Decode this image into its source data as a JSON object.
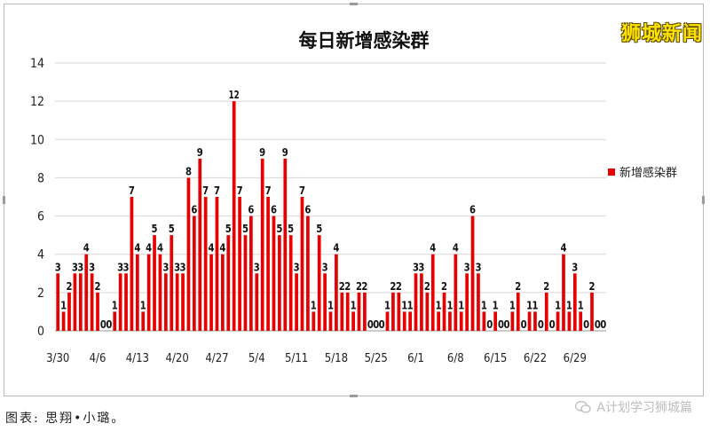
{
  "watermark": "狮城新闻",
  "caption": "图表: 思翔•小璐。",
  "wechat_account": "A计划学习狮城篇",
  "chart_data": {
    "type": "bar",
    "title": "每日新增感染群",
    "legend": [
      "新增感染群"
    ],
    "legend_position": "right",
    "ylim": [
      0,
      14
    ],
    "yticks": [
      0,
      2,
      4,
      6,
      8,
      10,
      12,
      14
    ],
    "grid": true,
    "colors": {
      "bar": "#e60000"
    },
    "xtick_labels": [
      "3/30",
      "4/6",
      "4/13",
      "4/20",
      "4/27",
      "5/4",
      "5/11",
      "5/18",
      "5/25",
      "6/1",
      "6/8",
      "6/15",
      "6/22",
      "6/29"
    ],
    "series": [
      {
        "name": "新增感染群",
        "values": [
          3,
          1,
          2,
          3,
          3,
          4,
          3,
          2,
          0,
          0,
          1,
          3,
          3,
          7,
          4,
          1,
          4,
          5,
          4,
          3,
          5,
          3,
          3,
          8,
          6,
          9,
          7,
          4,
          7,
          4,
          5,
          12,
          7,
          5,
          6,
          3,
          9,
          7,
          6,
          5,
          9,
          5,
          3,
          7,
          6,
          1,
          5,
          3,
          1,
          4,
          2,
          2,
          1,
          2,
          2,
          0,
          0,
          0,
          1,
          2,
          2,
          1,
          1,
          3,
          3,
          2,
          4,
          1,
          2,
          1,
          4,
          1,
          3,
          6,
          3,
          1,
          0,
          1,
          0,
          0,
          1,
          2,
          0,
          1,
          1,
          0,
          2,
          0,
          1,
          4,
          1,
          3,
          1,
          0,
          2,
          0,
          0
        ]
      }
    ]
  }
}
